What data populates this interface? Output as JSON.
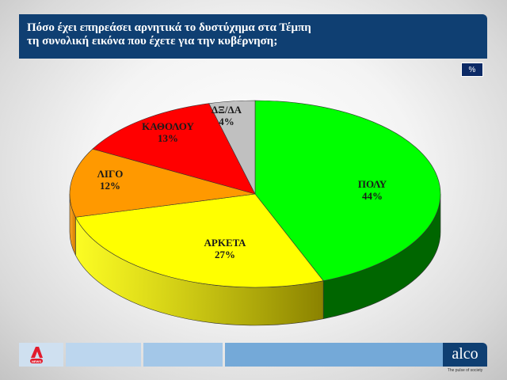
{
  "header": {
    "title_line1": "Πόσο έχει επηρεάσει αρνητικά το δυστύχημα στα Τέμπη",
    "title_line2": "τη συνολική εικόνα που έχετε για την κυβέρνηση;",
    "unit_badge": "%"
  },
  "chart_data": {
    "type": "pie",
    "style": "3d",
    "title": "Πόσο έχει επηρεάσει αρνητικά το δυστύχημα στα Τέμπη τη συνολική εικόνα που έχετε για την κυβέρνηση;",
    "unit": "%",
    "categories": [
      "ΠΟΛΥ",
      "ΑΡΚΕΤΑ",
      "ΛΙΓΟ",
      "ΚΑΘΟΛΟΥ",
      "ΔΞ/ΔΑ"
    ],
    "values": [
      44,
      27,
      12,
      13,
      4
    ],
    "labels": [
      "ΠΟΛΥ\n44%",
      "ΑΡΚΕΤΑ\n27%",
      "ΛΙΓΟ\n12%",
      "ΚΑΘΟΛΟΥ\n13%",
      "ΔΞ/ΔΑ\n4%"
    ],
    "colors": [
      "#00ff00",
      "#ffff00",
      "#ff9900",
      "#ff0000",
      "#c0c0c0"
    ],
    "side_colors": [
      "#006600",
      "#8a8200",
      "#d07a00",
      "#b00000",
      "#8a8a8a"
    ],
    "start_angle_deg": -90,
    "direction": "clockwise",
    "legend": "none"
  },
  "footer": {
    "left_logo": "ALPHA NEWS",
    "left_logo_sub": "NEWS",
    "brand": "alco",
    "tagline": "The pulse of society",
    "segment_colors": [
      "#cfe0f0",
      "#bcd6ee",
      "#a3c7e8",
      "#74a9d8"
    ]
  }
}
